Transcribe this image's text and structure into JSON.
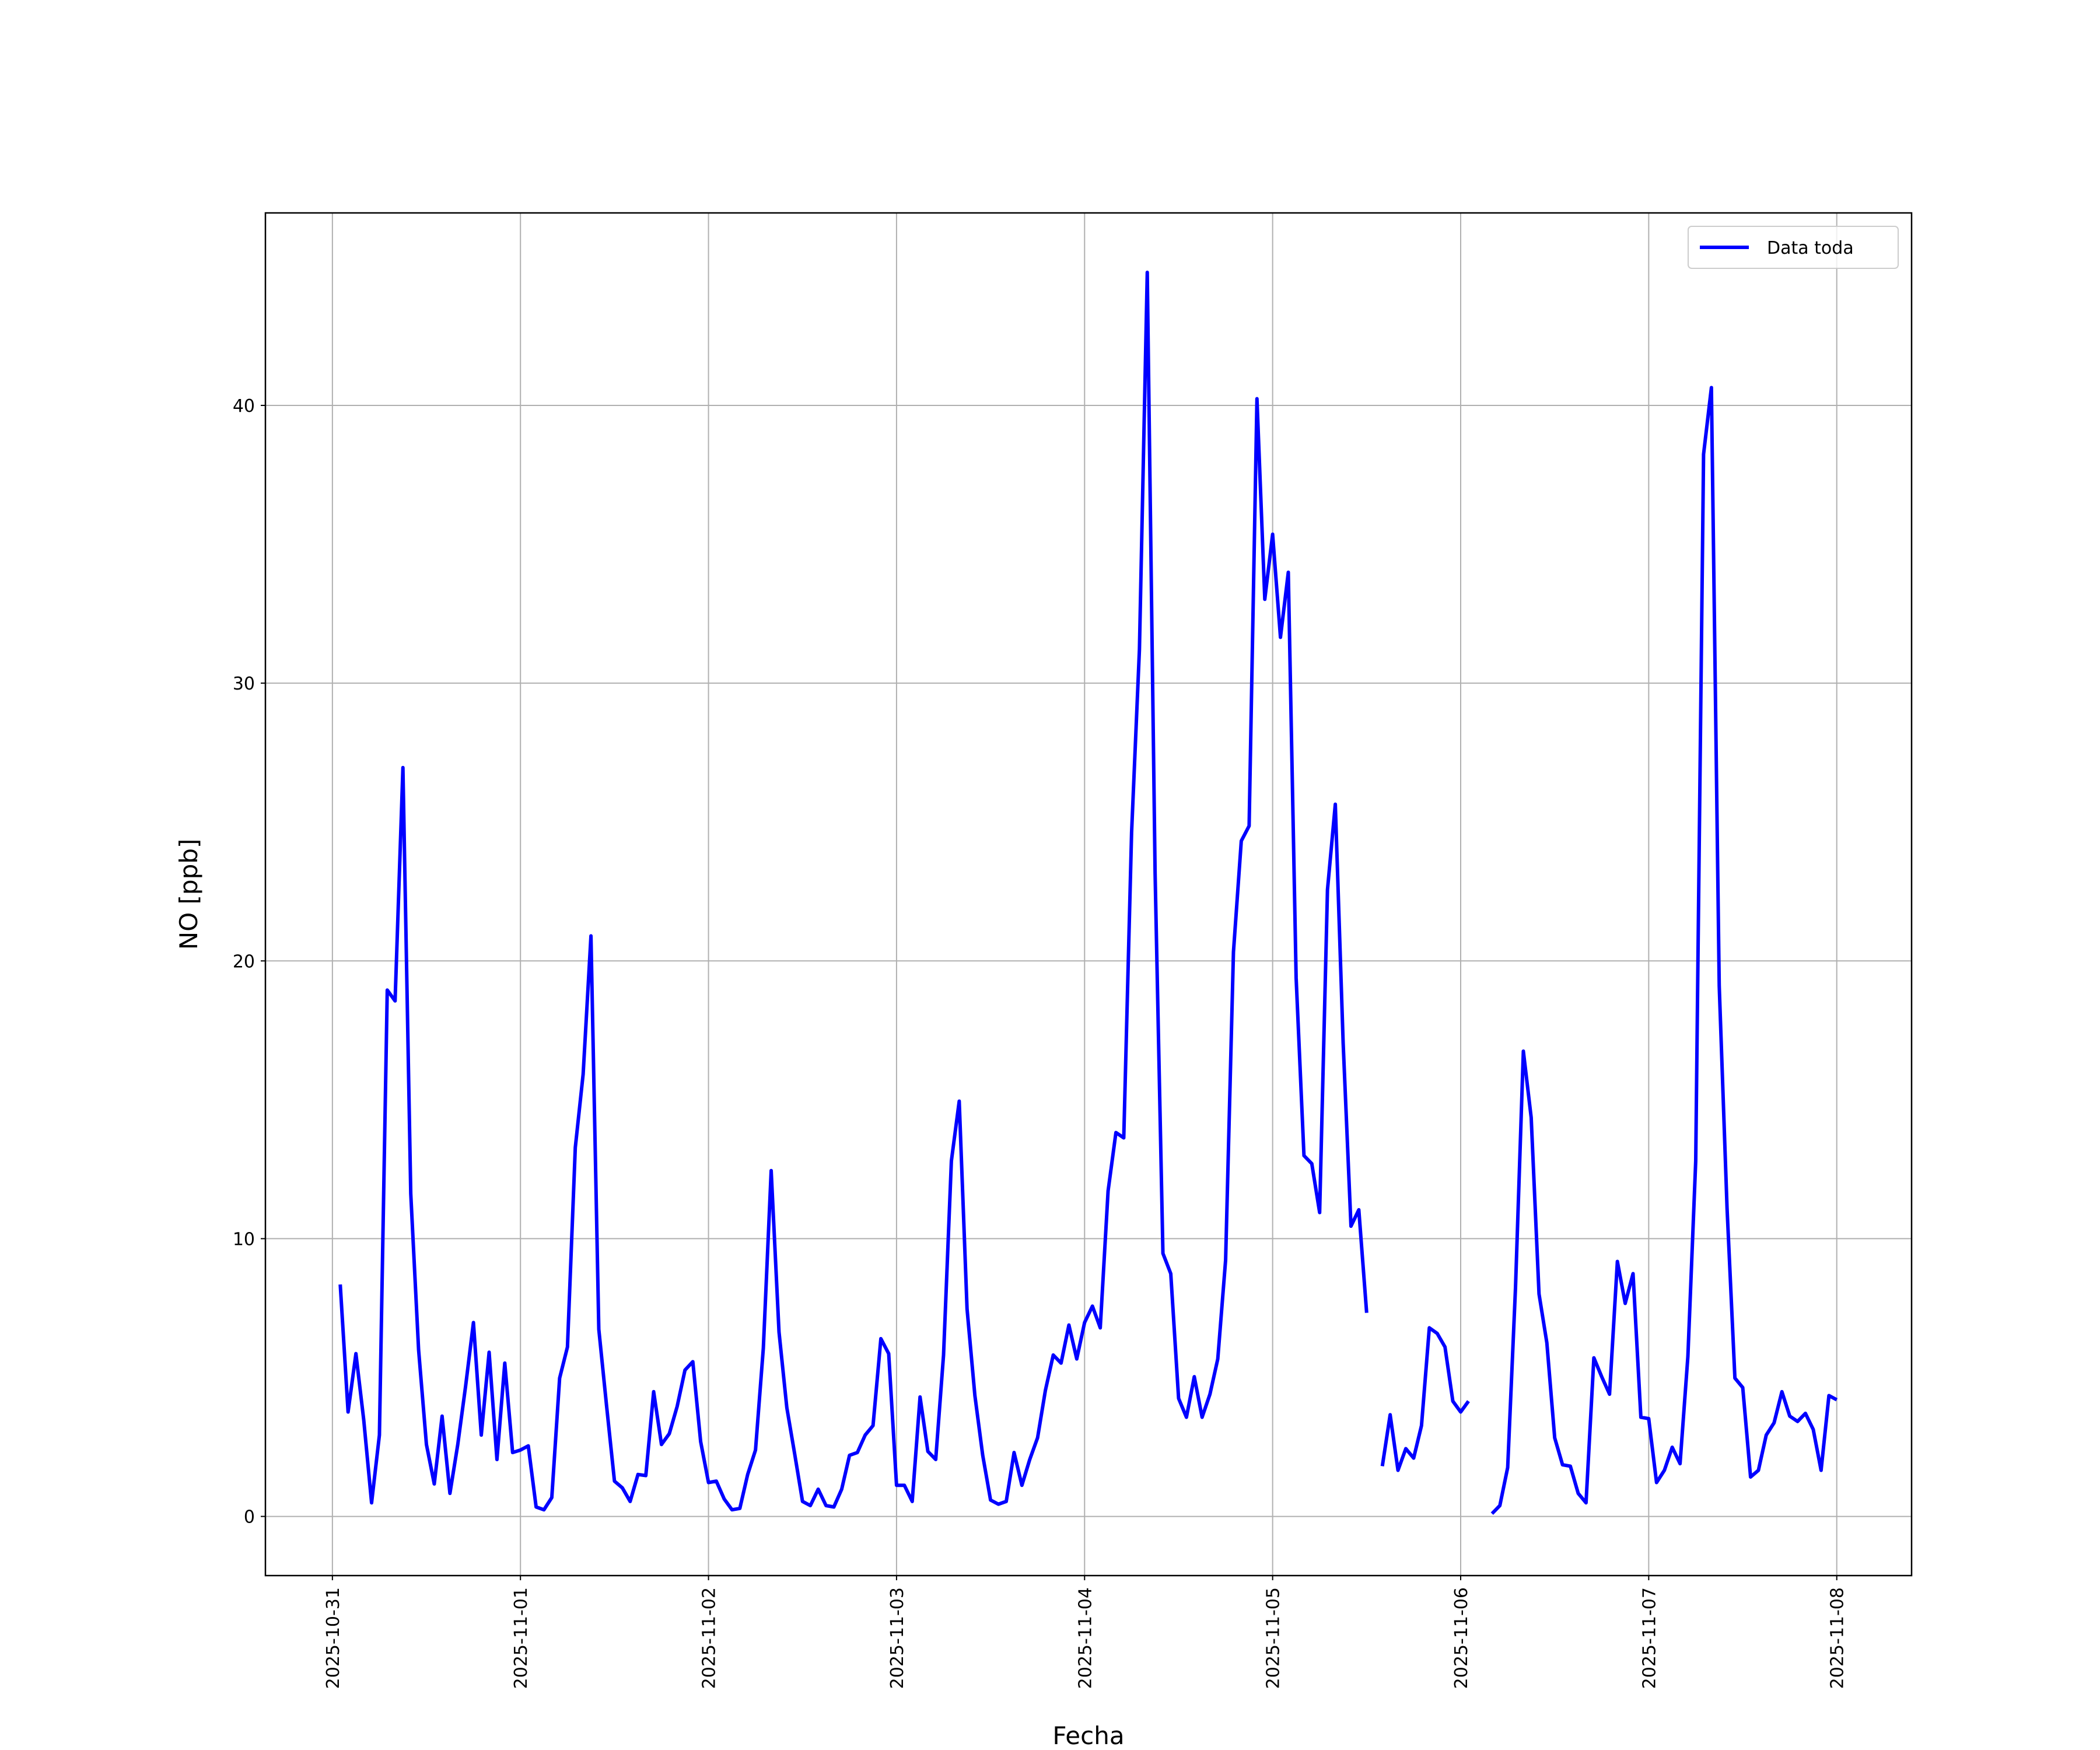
{
  "chart_data": {
    "type": "line",
    "xlabel": "Fecha",
    "ylabel": "NO [ppb]",
    "x": [
      "2025-10-31 01:00",
      "2025-10-31 02:00",
      "2025-10-31 03:00",
      "2025-10-31 04:00",
      "2025-10-31 05:00",
      "2025-10-31 06:00",
      "2025-10-31 07:00",
      "2025-10-31 08:00",
      "2025-10-31 09:00",
      "2025-10-31 10:00",
      "2025-10-31 11:00",
      "2025-10-31 12:00",
      "2025-10-31 13:00",
      "2025-10-31 14:00",
      "2025-10-31 15:00",
      "2025-10-31 16:00",
      "2025-10-31 17:00",
      "2025-10-31 18:00",
      "2025-10-31 19:00",
      "2025-10-31 20:00",
      "2025-10-31 21:00",
      "2025-10-31 22:00",
      "2025-10-31 23:00",
      "2025-11-01 00:00",
      "2025-11-01 01:00",
      "2025-11-01 02:00",
      "2025-11-01 03:00",
      "2025-11-01 04:00",
      "2025-11-01 05:00",
      "2025-11-01 06:00",
      "2025-11-01 07:00",
      "2025-11-01 08:00",
      "2025-11-01 09:00",
      "2025-11-01 10:00",
      "2025-11-01 11:00",
      "2025-11-01 12:00",
      "2025-11-01 13:00",
      "2025-11-01 14:00",
      "2025-11-01 15:00",
      "2025-11-01 16:00",
      "2025-11-01 17:00",
      "2025-11-01 18:00",
      "2025-11-01 19:00",
      "2025-11-01 20:00",
      "2025-11-01 21:00",
      "2025-11-01 22:00",
      "2025-11-01 23:00",
      "2025-11-02 00:00",
      "2025-11-02 01:00",
      "2025-11-02 02:00",
      "2025-11-02 03:00",
      "2025-11-02 04:00",
      "2025-11-02 05:00",
      "2025-11-02 06:00",
      "2025-11-02 07:00",
      "2025-11-02 08:00",
      "2025-11-02 09:00",
      "2025-11-02 10:00",
      "2025-11-02 11:00",
      "2025-11-02 12:00",
      "2025-11-02 13:00",
      "2025-11-02 14:00",
      "2025-11-02 15:00",
      "2025-11-02 16:00",
      "2025-11-02 17:00",
      "2025-11-02 18:00",
      "2025-11-02 19:00",
      "2025-11-02 20:00",
      "2025-11-02 21:00",
      "2025-11-02 22:00",
      "2025-11-02 23:00",
      "2025-11-03 00:00",
      "2025-11-03 01:00",
      "2025-11-03 02:00",
      "2025-11-03 03:00",
      "2025-11-03 04:00",
      "2025-11-03 05:00",
      "2025-11-03 06:00",
      "2025-11-03 07:00",
      "2025-11-03 08:00",
      "2025-11-03 09:00",
      "2025-11-03 10:00",
      "2025-11-03 11:00",
      "2025-11-03 12:00",
      "2025-11-03 13:00",
      "2025-11-03 14:00",
      "2025-11-03 15:00",
      "2025-11-03 16:00",
      "2025-11-03 17:00",
      "2025-11-03 18:00",
      "2025-11-03 19:00",
      "2025-11-03 20:00",
      "2025-11-03 21:00",
      "2025-11-03 22:00",
      "2025-11-03 23:00",
      "2025-11-04 00:00",
      "2025-11-04 01:00",
      "2025-11-04 02:00",
      "2025-11-04 03:00",
      "2025-11-04 04:00",
      "2025-11-04 05:00",
      "2025-11-04 06:00",
      "2025-11-04 07:00",
      "2025-11-04 08:00",
      "2025-11-04 09:00",
      "2025-11-04 10:00",
      "2025-11-04 11:00",
      "2025-11-04 12:00",
      "2025-11-04 13:00",
      "2025-11-04 14:00",
      "2025-11-04 15:00",
      "2025-11-04 16:00",
      "2025-11-04 17:00",
      "2025-11-04 18:00",
      "2025-11-04 19:00",
      "2025-11-04 20:00",
      "2025-11-04 21:00",
      "2025-11-04 22:00",
      "2025-11-04 23:00",
      "2025-11-05 00:00",
      "2025-11-05 01:00",
      "2025-11-05 02:00",
      "2025-11-05 03:00",
      "2025-11-05 04:00",
      "2025-11-05 05:00",
      "2025-11-05 06:00",
      "2025-11-05 07:00",
      "2025-11-05 08:00",
      "2025-11-05 09:00",
      "2025-11-05 10:00",
      "2025-11-05 11:00",
      "2025-11-05 12:00",
      "2025-11-05 13:00",
      "2025-11-05 14:00",
      "2025-11-05 15:00",
      "2025-11-05 16:00",
      "2025-11-05 17:00",
      "2025-11-05 18:00",
      "2025-11-05 19:00",
      "2025-11-05 20:00",
      "2025-11-05 21:00",
      "2025-11-05 22:00",
      "2025-11-05 23:00",
      "2025-11-06 00:00",
      "2025-11-06 01:00",
      "2025-11-06 02:00",
      "2025-11-06 03:00",
      "2025-11-06 04:00",
      "2025-11-06 05:00",
      "2025-11-06 06:00",
      "2025-11-06 07:00",
      "2025-11-06 08:00",
      "2025-11-06 09:00",
      "2025-11-06 10:00",
      "2025-11-06 11:00",
      "2025-11-06 12:00",
      "2025-11-06 13:00",
      "2025-11-06 14:00",
      "2025-11-06 15:00",
      "2025-11-06 16:00",
      "2025-11-06 17:00",
      "2025-11-06 18:00",
      "2025-11-06 19:00",
      "2025-11-06 20:00",
      "2025-11-06 21:00",
      "2025-11-06 22:00",
      "2025-11-06 23:00",
      "2025-11-07 00:00",
      "2025-11-07 01:00",
      "2025-11-07 02:00",
      "2025-11-07 03:00",
      "2025-11-07 04:00",
      "2025-11-07 05:00",
      "2025-11-07 06:00",
      "2025-11-07 07:00",
      "2025-11-07 08:00",
      "2025-11-07 09:00",
      "2025-11-07 10:00",
      "2025-11-07 11:00",
      "2025-11-07 12:00",
      "2025-11-07 13:00",
      "2025-11-07 14:00",
      "2025-11-07 15:00",
      "2025-11-07 16:00",
      "2025-11-07 17:00",
      "2025-11-07 18:00",
      "2025-11-07 19:00",
      "2025-11-07 20:00",
      "2025-11-07 21:00",
      "2025-11-07 22:00",
      "2025-11-07 23:00",
      "2025-11-08 00:00"
    ],
    "series": [
      {
        "name": "Data toda",
        "color": "#0000ff",
        "values": [
          8.35,
          3.76,
          5.86,
          3.47,
          0.49,
          2.93,
          18.95,
          18.56,
          26.96,
          11.62,
          6.0,
          2.59,
          1.17,
          3.61,
          0.83,
          2.59,
          4.69,
          6.98,
          2.93,
          5.91,
          2.05,
          5.52,
          2.3,
          2.39,
          2.54,
          0.34,
          0.24,
          0.68,
          4.98,
          6.1,
          13.28,
          15.92,
          20.9,
          6.74,
          3.96,
          1.27,
          1.03,
          0.54,
          1.51,
          1.47,
          4.49,
          2.59,
          2.98,
          3.96,
          5.27,
          5.57,
          2.69,
          1.22,
          1.27,
          0.63,
          0.24,
          0.29,
          1.51,
          2.39,
          6.06,
          12.45,
          6.64,
          3.91,
          2.25,
          0.54,
          0.39,
          0.98,
          0.39,
          0.34,
          0.98,
          2.2,
          2.3,
          2.93,
          3.27,
          6.4,
          5.86,
          1.12,
          1.12,
          0.54,
          4.3,
          2.34,
          2.05,
          5.81,
          12.8,
          14.95,
          7.47,
          4.35,
          2.2,
          0.59,
          0.44,
          0.54,
          2.3,
          1.12,
          2.05,
          2.83,
          4.54,
          5.81,
          5.52,
          6.89,
          5.67,
          6.98,
          7.57,
          6.79,
          11.72,
          13.82,
          13.63,
          24.62,
          31.21,
          44.79,
          23.15,
          9.47,
          8.74,
          4.25,
          3.57,
          5.03,
          3.57,
          4.4,
          5.67,
          9.23,
          20.32,
          24.32,
          24.86,
          40.24,
          33.02,
          35.36,
          31.65,
          33.99,
          19.39,
          12.99,
          12.7,
          10.94,
          22.56,
          25.64,
          17.05,
          10.45,
          11.04,
          7.33,
          null,
          1.81,
          3.66,
          1.66,
          2.44,
          2.1,
          3.27,
          6.79,
          6.59,
          6.1,
          4.15,
          3.76,
          4.15,
          null,
          null,
          0.1,
          0.39,
          1.76,
          8.25,
          16.75,
          14.36,
          8.01,
          6.25,
          2.83,
          1.86,
          1.81,
          0.83,
          0.49,
          5.71,
          5.03,
          4.4,
          9.18,
          7.67,
          8.74,
          3.57,
          3.52,
          1.22,
          1.66,
          2.49,
          1.9,
          5.76,
          12.8,
          38.24,
          40.64,
          19.1,
          11.09,
          4.98,
          4.64,
          1.42,
          1.66,
          2.93,
          3.37,
          4.49,
          3.61,
          3.42,
          3.71,
          3.13,
          1.66,
          4.35,
          4.2
        ]
      }
    ],
    "xlim": [
      "2025-10-30 15:27",
      "2025-11-08 09:33"
    ],
    "xticks": [
      "2025-10-31",
      "2025-11-01",
      "2025-11-02",
      "2025-11-03",
      "2025-11-04",
      "2025-11-05",
      "2025-11-06",
      "2025-11-07",
      "2025-11-08"
    ],
    "ylim": [
      -2.13,
      46.93
    ],
    "yticks": [
      0,
      10,
      20,
      30,
      40
    ],
    "grid": true,
    "legend": "upper right"
  }
}
